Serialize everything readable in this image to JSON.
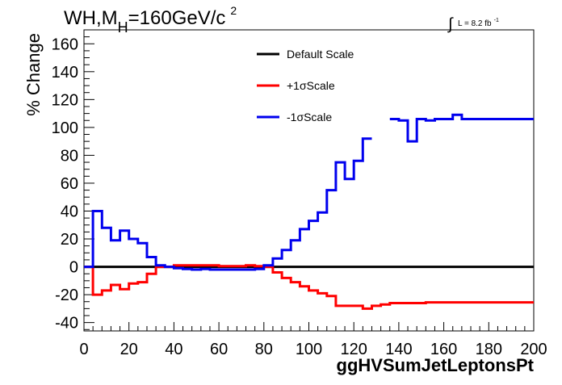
{
  "header": {
    "title_main": "WH,M",
    "title_sub": "H",
    "title_rest": "=160GeV/c",
    "title_sup": "2",
    "lumi_symbol": "∫",
    "lumi_text": "L = 8.2 fb",
    "lumi_sup": "-1"
  },
  "chart_data": {
    "type": "line",
    "xlabel": "ggHVSumJetLeptonsPt",
    "ylabel": "% Change",
    "xlim": [
      0,
      200
    ],
    "ylim": [
      -46,
      170
    ],
    "x_ticks": [
      0,
      20,
      40,
      60,
      80,
      100,
      120,
      140,
      160,
      180,
      200
    ],
    "y_ticks": [
      -40,
      -20,
      0,
      20,
      40,
      60,
      80,
      100,
      120,
      140,
      160
    ],
    "legend_position": "top-center",
    "bin_edges": [
      0,
      4,
      8,
      12,
      16,
      20,
      24,
      28,
      32,
      36,
      40,
      44,
      48,
      52,
      56,
      60,
      64,
      68,
      72,
      76,
      80,
      84,
      88,
      92,
      96,
      100,
      104,
      108,
      112,
      116,
      120,
      124,
      128,
      132,
      136,
      140,
      144,
      148,
      152,
      156,
      160,
      164,
      168,
      172,
      176,
      180,
      184,
      188,
      192,
      196,
      200
    ],
    "series": [
      {
        "name": "Default Scale",
        "color": "#000000",
        "values": [
          0,
          0,
          0,
          0,
          0,
          0,
          0,
          0,
          0,
          0,
          0,
          0,
          0,
          0,
          0,
          0,
          0,
          0,
          0,
          0,
          0,
          0,
          0,
          0,
          0,
          0,
          0,
          0,
          0,
          0,
          0,
          0,
          0,
          0,
          0,
          0,
          0,
          0,
          0,
          0,
          0,
          0,
          0,
          0,
          0,
          0,
          0,
          0,
          0,
          0
        ]
      },
      {
        "name": "+1σScale",
        "color": "#ff0000",
        "values": [
          0,
          -20,
          -17,
          -13,
          -16,
          -12,
          -11,
          -5,
          0,
          0,
          1,
          1,
          1,
          1,
          1,
          0.5,
          0.5,
          0.5,
          1,
          0.5,
          0,
          -4,
          -8,
          -11,
          -14,
          -17,
          -19,
          -21,
          -28,
          -28,
          -28,
          -30,
          -28,
          -27,
          -26,
          -26,
          -26,
          -26,
          -25.5,
          -25.5,
          -25.5,
          -25.5,
          -25.5,
          -25.5,
          -25.5,
          -25.5,
          -25.5,
          -25.5,
          -25.5,
          -25.5
        ]
      },
      {
        "name": "-1σScale",
        "color": "#0000ee",
        "values": [
          0,
          40,
          28,
          19,
          26,
          20,
          17,
          7,
          1,
          0,
          -1,
          -1.5,
          -2,
          -1.5,
          -2,
          -2,
          -2,
          -2,
          -2,
          -1.5,
          1,
          6,
          12,
          19,
          27,
          33,
          39,
          55,
          75,
          63,
          76,
          92,
          null,
          null,
          106,
          105,
          90,
          106,
          105,
          106,
          106,
          109,
          106,
          106,
          106,
          106,
          106,
          106,
          106,
          106
        ]
      }
    ]
  }
}
